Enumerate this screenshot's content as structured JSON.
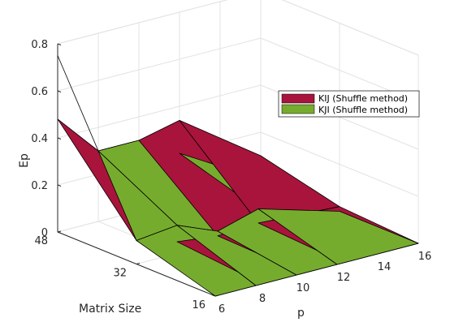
{
  "chart_data": {
    "type": "surface3d",
    "grid": true,
    "legend_placement": "top-right",
    "x_axis": {
      "label": "p",
      "ticks": [
        "6",
        "8",
        "10",
        "12",
        "14",
        "16"
      ],
      "range": [
        6,
        16
      ]
    },
    "y_axis": {
      "label": "Matrix Size",
      "ticks": [
        "16",
        "32",
        "48"
      ],
      "range": [
        16,
        48
      ]
    },
    "z_axis": {
      "label": "Ep",
      "ticks": [
        "0",
        "0.2",
        "0.4",
        "0.6",
        "0.8"
      ],
      "range": [
        0,
        0.8
      ]
    },
    "p_values": [
      6,
      8,
      10,
      12,
      16
    ],
    "matrix_sizes": [
      16,
      32,
      48
    ],
    "series": [
      {
        "name": "KIJ (Shuffle method)",
        "color": "#a8143c",
        "z": [
          [
            0.03,
            0.02,
            0.02,
            0.02,
            0.0
          ],
          [
            0.1,
            0.05,
            0.03,
            0.04,
            0.02
          ],
          [
            0.48,
            0.3,
            0.3,
            0.34,
            0.1
          ]
        ]
      },
      {
        "name": "KJI (Shuffle method)",
        "color": "#76ac2e",
        "z": [
          [
            0.0,
            0.0,
            0.0,
            0.0,
            0.0
          ],
          [
            0.1,
            0.12,
            0.05,
            0.1,
            0.0
          ],
          [
            0.75,
            0.3,
            0.3,
            0.2,
            0.0
          ]
        ]
      }
    ]
  }
}
